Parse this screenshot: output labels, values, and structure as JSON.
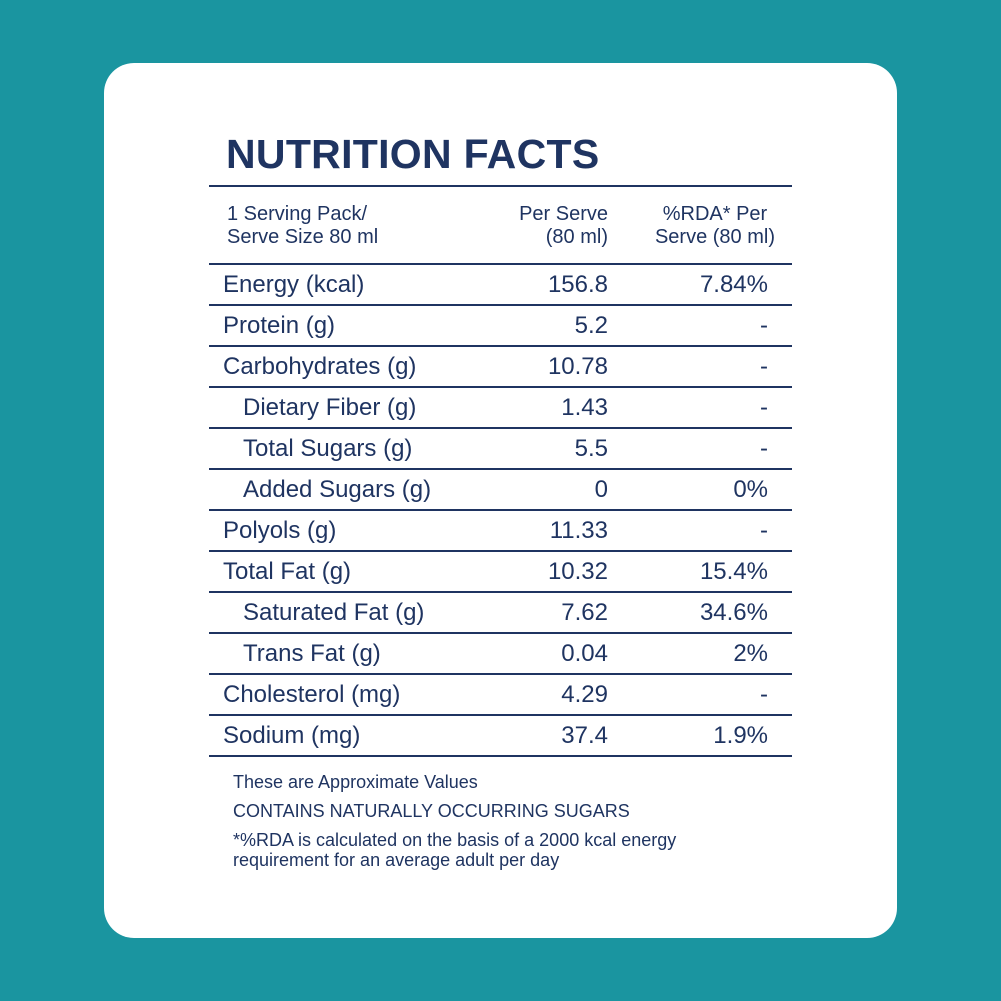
{
  "title": "NUTRITION FACTS",
  "header": {
    "col1": "1 Serving Pack/\nServe Size 80 ml",
    "col2": "Per Serve\n(80 ml)",
    "col3": "%RDA* Per\nServe (80 ml)"
  },
  "rows": [
    {
      "label": "Energy (kcal)",
      "per_serve": "156.8",
      "rda": "7.84%",
      "indent": false
    },
    {
      "label": "Protein (g)",
      "per_serve": "5.2",
      "rda": "-",
      "indent": false
    },
    {
      "label": "Carbohydrates (g)",
      "per_serve": "10.78",
      "rda": "-",
      "indent": false
    },
    {
      "label": "Dietary Fiber (g)",
      "per_serve": "1.43",
      "rda": "-",
      "indent": true
    },
    {
      "label": "Total Sugars (g)",
      "per_serve": "5.5",
      "rda": "-",
      "indent": true
    },
    {
      "label": "Added Sugars (g)",
      "per_serve": "0",
      "rda": "0%",
      "indent": true
    },
    {
      "label": "Polyols (g)",
      "per_serve": "11.33",
      "rda": "-",
      "indent": false
    },
    {
      "label": "Total Fat (g)",
      "per_serve": "10.32",
      "rda": "15.4%",
      "indent": false
    },
    {
      "label": "Saturated Fat (g)",
      "per_serve": "7.62",
      "rda": "34.6%",
      "indent": true
    },
    {
      "label": "Trans Fat (g)",
      "per_serve": "0.04",
      "rda": "2%",
      "indent": true
    },
    {
      "label": "Cholesterol (mg)",
      "per_serve": "4.29",
      "rda": "-",
      "indent": false
    },
    {
      "label": "Sodium (mg)",
      "per_serve": "37.4",
      "rda": "1.9%",
      "indent": false
    }
  ],
  "notes": {
    "approx": "These are Approximate Values",
    "sugars": "CONTAINS NATURALLY OCCURRING SUGARS",
    "footnote": "*%RDA is calculated on the basis of a 2000 kcal energy\nrequirement for an average adult per day"
  },
  "colors": {
    "background": "#1a95a0",
    "card": "#ffffff",
    "text": "#1f3461"
  }
}
